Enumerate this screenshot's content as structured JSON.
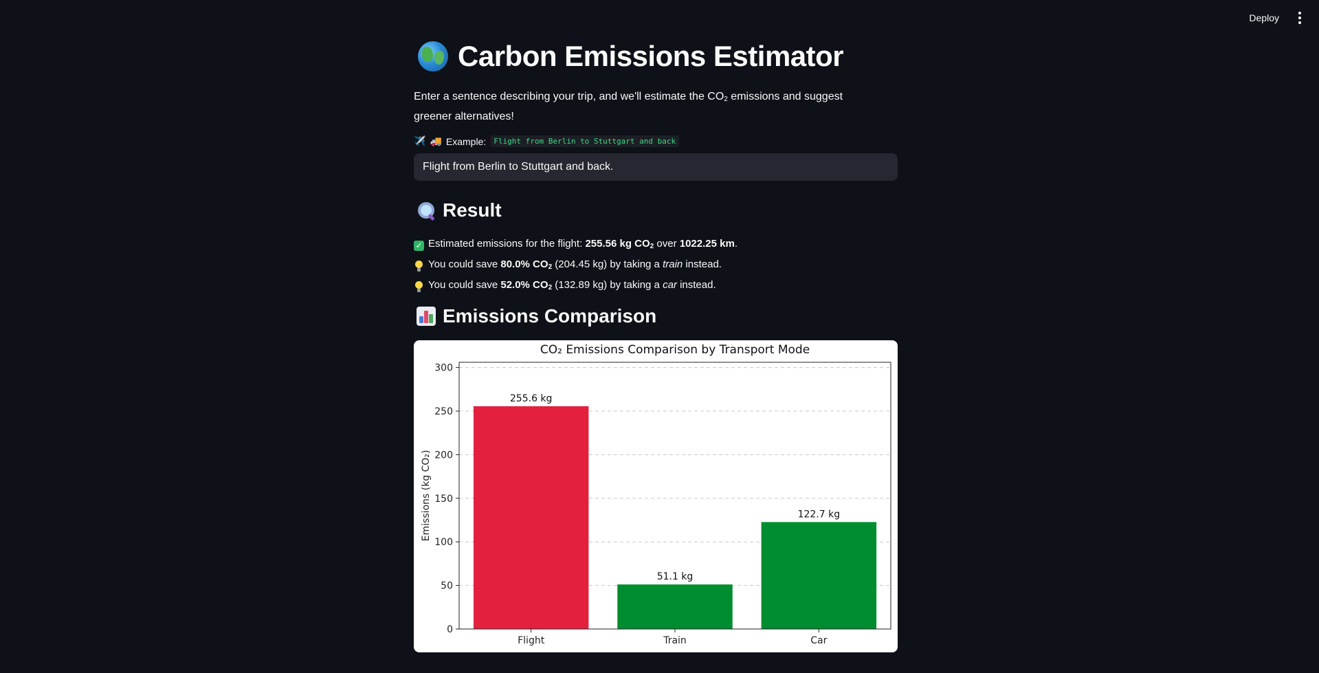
{
  "toolbar": {
    "deploy_label": "Deploy"
  },
  "header": {
    "title": "Carbon Emissions Estimator"
  },
  "intro": {
    "text_pre": "Enter a sentence describing your trip, and we'll estimate the CO",
    "sub": "2",
    "text_post": " emissions and suggest greener alternatives!"
  },
  "example": {
    "label": "Example:",
    "code": "Flight from Berlin to Stuttgart and back"
  },
  "trip_input": {
    "value": "Flight from Berlin to Stuttgart and back."
  },
  "result": {
    "heading": "Result",
    "line1": {
      "pre": "Estimated emissions for the flight: ",
      "co2": "255.56 kg CO",
      "mid": " over ",
      "distance": "1022.25 km",
      "end": "."
    },
    "line2": {
      "pre": "You could save ",
      "pct": "80.0% CO",
      "amount": " (204.45 kg) by taking a ",
      "mode": "train",
      "end": " instead."
    },
    "line3": {
      "pre": "You could save ",
      "pct": "52.0% CO",
      "amount": " (132.89 kg) by taking a ",
      "mode": "car",
      "end": " instead."
    },
    "sub": "2"
  },
  "comparison": {
    "heading": "Emissions Comparison"
  },
  "chart_data": {
    "type": "bar",
    "title": "CO₂ Emissions Comparison by Transport Mode",
    "ylabel": "Emissions (kg CO₂)",
    "xlabel": "",
    "categories": [
      "Flight",
      "Train",
      "Car"
    ],
    "values": [
      255.6,
      51.1,
      122.7
    ],
    "value_labels": [
      "255.6 kg",
      "51.1 kg",
      "122.7 kg"
    ],
    "colors": [
      "#e3213f",
      "#008c30",
      "#008c30"
    ],
    "ylim": [
      0,
      306
    ],
    "yticks": [
      0,
      50,
      100,
      150,
      200,
      250,
      300
    ],
    "grid": "y-dashed"
  },
  "theme": {
    "background": "#0e1117",
    "input_bg": "#262730",
    "code_color": "#3ed97f"
  }
}
